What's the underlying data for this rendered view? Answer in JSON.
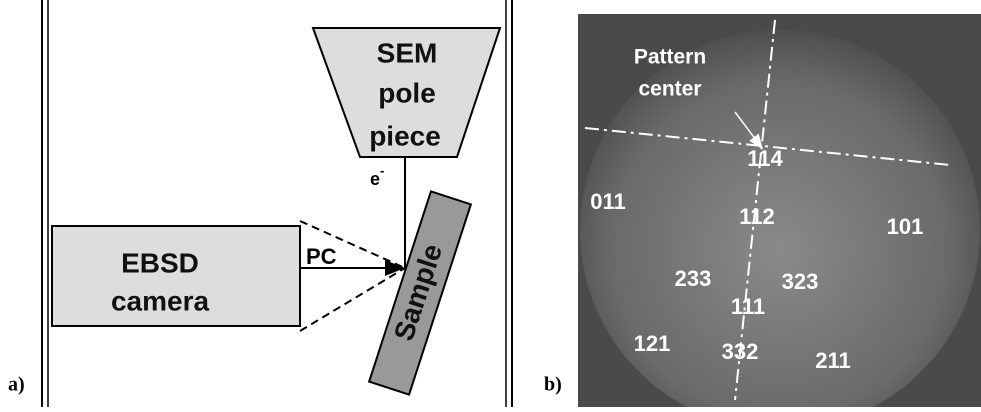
{
  "panel_a": {
    "label": "a)",
    "pole_piece": [
      "SEM",
      "pole",
      "piece"
    ],
    "beam": {
      "base": "e",
      "sup": "-"
    },
    "camera": [
      "EBSD",
      "camera"
    ],
    "pc": "PC",
    "sample": "Sample"
  },
  "panel_b": {
    "label": "b)",
    "pattern_center": [
      "Pattern",
      "center"
    ],
    "indices": [
      "114",
      "011",
      "112",
      "101",
      "233",
      "323",
      "111",
      "121",
      "332",
      "211"
    ]
  }
}
